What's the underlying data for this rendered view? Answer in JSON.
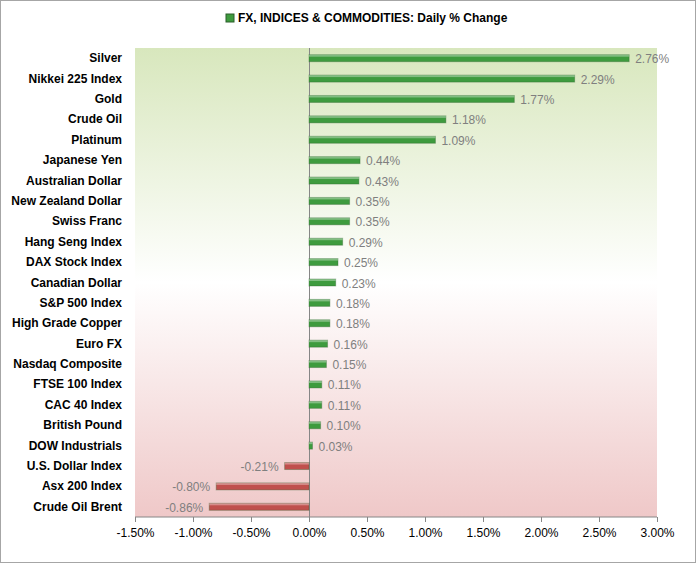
{
  "chart_data": {
    "type": "bar",
    "orientation": "horizontal",
    "categories": [
      "Silver",
      "Nikkei 225 Index",
      "Gold",
      "Crude Oil",
      "Platinum",
      "Japanese Yen",
      "Australian Dollar",
      "New Zealand Dollar",
      "Swiss Franc",
      "Hang Seng Index",
      "DAX Stock Index",
      "Canadian Dollar",
      "S&P 500 Index",
      "High Grade Copper",
      "Euro FX",
      "Nasdaq Composite",
      "FTSE 100 Index",
      "CAC 40 Index",
      "British Pound",
      "DOW Industrials",
      "U.S. Dollar Index",
      "Asx 200 Index",
      "Crude Oil Brent"
    ],
    "series": [
      {
        "name": "FX, INDICES & COMMODITIES: Daily % Change",
        "color": "#3e9b3e",
        "colors": [
          "#3e9b3e",
          "#3e9b3e",
          "#3e9b3e",
          "#3e9b3e",
          "#3e9b3e",
          "#3e9b3e",
          "#3e9b3e",
          "#3e9b3e",
          "#3e9b3e",
          "#3e9b3e",
          "#3e9b3e",
          "#3e9b3e",
          "#3e9b3e",
          "#3e9b3e",
          "#3e9b3e",
          "#3e9b3e",
          "#3e9b3e",
          "#3e9b3e",
          "#3e9b3e",
          "#3e9b3e",
          "#c0504d",
          "#c0504d",
          "#c0504d"
        ],
        "values": [
          2.76,
          2.29,
          1.77,
          1.18,
          1.09,
          0.44,
          0.43,
          0.35,
          0.35,
          0.29,
          0.25,
          0.23,
          0.18,
          0.18,
          0.16,
          0.15,
          0.11,
          0.11,
          0.1,
          0.03,
          -0.21,
          -0.8,
          -0.86
        ],
        "value_labels": [
          "2.76%",
          "2.29%",
          "1.77%",
          "1.18%",
          "1.09%",
          "0.44%",
          "0.43%",
          "0.35%",
          "0.35%",
          "0.29%",
          "0.25%",
          "0.23%",
          "0.18%",
          "0.18%",
          "0.16%",
          "0.15%",
          "0.11%",
          "0.11%",
          "0.10%",
          "0.03%",
          "-0.21%",
          "-0.80%",
          "-0.86%"
        ]
      }
    ],
    "xlim": [
      -1.5,
      3.0
    ],
    "xticks": [
      {
        "value": -1.5,
        "label": "-1.50%"
      },
      {
        "value": -1.0,
        "label": "-1.00%"
      },
      {
        "value": -0.5,
        "label": "-0.50%"
      },
      {
        "value": 0,
        "label": "0.00%"
      },
      {
        "value": 0.5,
        "label": "0.50%"
      },
      {
        "value": 1.0,
        "label": "1.00%"
      },
      {
        "value": 1.5,
        "label": "1.50%"
      },
      {
        "value": 2.0,
        "label": "2.00%"
      },
      {
        "value": 2.5,
        "label": "2.50%"
      },
      {
        "value": 3.0,
        "label": "3.00%"
      }
    ],
    "grid": false,
    "legend": "top",
    "data_labels": true
  }
}
